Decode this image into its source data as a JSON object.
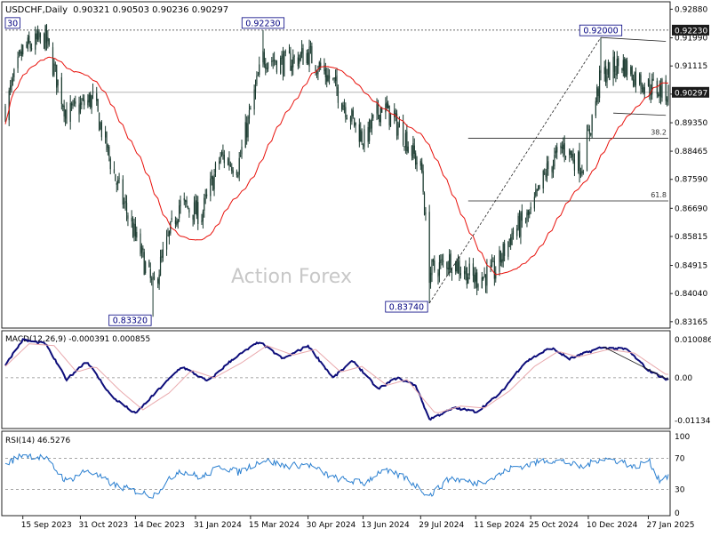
{
  "chart_data": [
    {
      "type": "candlestick",
      "title": "USDCHF,Daily",
      "ohlc_header": "0.90321 0.90503 0.90236 0.90297",
      "watermark": "Action Forex",
      "ylim": [
        0.8305,
        0.93
      ],
      "y_ticks": [
        "0.92880",
        "0.91990",
        "0.91115",
        "0.90240",
        "0.89350",
        "0.88465",
        "0.87590",
        "0.86690",
        "0.85815",
        "0.84915",
        "0.84040",
        "0.83165"
      ],
      "y_tick_values": [
        0.9288,
        0.9199,
        0.91115,
        0.9024,
        0.8935,
        0.88465,
        0.8759,
        0.8669,
        0.85815,
        0.84915,
        0.8404,
        0.83165
      ],
      "x_ticks": [
        "15 Sep 2023",
        "31 Oct 2023",
        "14 Dec 2023",
        "31 Jan 2024",
        "15 Mar 2024",
        "30 Apr 2024",
        "13 Jun 2024",
        "29 Jul 2024",
        "11 Sep 2024",
        "25 Oct 2024",
        "10 Dec 2024",
        "27 Jan 2025"
      ],
      "current_price": "0.90297",
      "current_price_value": 0.90297,
      "resistance_level": "0.92230",
      "resistance_value": 0.9223,
      "annotations": [
        {
          "label": "0.92230",
          "value": 0.9223,
          "date": "2024-03-25"
        },
        {
          "label": "0.92000",
          "value": 0.92,
          "date": "2024-12-20"
        },
        {
          "label": "0.83320",
          "value": 0.8332,
          "date": "2023-12-28"
        },
        {
          "label": "0.83740",
          "value": 0.8374,
          "date": "2024-08-05"
        },
        {
          "label": "30",
          "value": 0.9223,
          "date": "2023-09-15"
        }
      ],
      "fib_levels": [
        {
          "label": "38.2",
          "value": 0.8887
        },
        {
          "label": "61.8",
          "value": 0.8692
        }
      ],
      "moving_average": {
        "color": "#e8120c"
      },
      "trendlines": [
        {
          "from": {
            "date": "2024-08-05",
            "value": 0.8374
          },
          "to": {
            "date": "2024-12-20",
            "value": 0.92
          }
        },
        {
          "from": {
            "date": "2024-12-20",
            "value": 0.92
          },
          "to": {
            "date": "2025-02-10",
            "value": 0.9188
          }
        },
        {
          "from": {
            "date": "2024-12-30",
            "value": 0.8965
          },
          "to": {
            "date": "2025-02-10",
            "value": 0.8958
          }
        }
      ],
      "series_anchors": [
        {
          "date": "2023-09-01",
          "value": 0.898
        },
        {
          "date": "2023-09-15",
          "value": 0.916
        },
        {
          "date": "2023-10-03",
          "value": 0.92
        },
        {
          "date": "2023-10-20",
          "value": 0.896
        },
        {
          "date": "2023-11-10",
          "value": 0.901
        },
        {
          "date": "2023-11-28",
          "value": 0.876
        },
        {
          "date": "2023-12-28",
          "value": 0.842
        },
        {
          "date": "2024-01-18",
          "value": 0.868
        },
        {
          "date": "2024-02-05",
          "value": 0.865
        },
        {
          "date": "2024-02-20",
          "value": 0.883
        },
        {
          "date": "2024-03-05",
          "value": 0.88
        },
        {
          "date": "2024-03-25",
          "value": 0.914
        },
        {
          "date": "2024-04-12",
          "value": 0.912
        },
        {
          "date": "2024-04-30",
          "value": 0.915
        },
        {
          "date": "2024-05-20",
          "value": 0.906
        },
        {
          "date": "2024-06-05",
          "value": 0.894
        },
        {
          "date": "2024-06-14",
          "value": 0.888
        },
        {
          "date": "2024-06-28",
          "value": 0.899
        },
        {
          "date": "2024-07-17",
          "value": 0.889
        },
        {
          "date": "2024-07-30",
          "value": 0.878
        },
        {
          "date": "2024-08-05",
          "value": 0.847
        },
        {
          "date": "2024-08-22",
          "value": 0.851
        },
        {
          "date": "2024-09-10",
          "value": 0.845
        },
        {
          "date": "2024-09-26",
          "value": 0.847
        },
        {
          "date": "2024-10-10",
          "value": 0.859
        },
        {
          "date": "2024-10-25",
          "value": 0.865
        },
        {
          "date": "2024-11-06",
          "value": 0.878
        },
        {
          "date": "2024-11-20",
          "value": 0.886
        },
        {
          "date": "2024-12-05",
          "value": 0.88
        },
        {
          "date": "2024-12-20",
          "value": 0.908
        },
        {
          "date": "2025-01-06",
          "value": 0.912
        },
        {
          "date": "2025-01-16",
          "value": 0.908
        },
        {
          "date": "2025-01-27",
          "value": 0.905
        },
        {
          "date": "2025-02-10",
          "value": 0.903
        }
      ]
    },
    {
      "type": "line",
      "title": "MACD(12,26,9) -0.000391 0.000855",
      "ylim": [
        -0.0125,
        0.0115
      ],
      "y_ticks": [
        "0.010086",
        "0.00",
        "-0.011342"
      ],
      "y_tick_values": [
        0.010086,
        0.0,
        -0.011342
      ],
      "series": [
        {
          "role": "main",
          "color": "#0d0d7a",
          "anchors": [
            {
              "date": "2023-09-01",
              "value": 0.0035
            },
            {
              "date": "2023-09-15",
              "value": 0.01
            },
            {
              "date": "2023-10-03",
              "value": 0.009
            },
            {
              "date": "2023-10-20",
              "value": -0.0005
            },
            {
              "date": "2023-11-05",
              "value": 0.0045
            },
            {
              "date": "2023-11-25",
              "value": -0.005
            },
            {
              "date": "2023-12-14",
              "value": -0.0095
            },
            {
              "date": "2024-01-02",
              "value": -0.003
            },
            {
              "date": "2024-01-20",
              "value": 0.003
            },
            {
              "date": "2024-02-10",
              "value": -0.001
            },
            {
              "date": "2024-03-01",
              "value": 0.005
            },
            {
              "date": "2024-03-22",
              "value": 0.0095
            },
            {
              "date": "2024-04-10",
              "value": 0.005
            },
            {
              "date": "2024-04-30",
              "value": 0.0085
            },
            {
              "date": "2024-05-20",
              "value": 0.0
            },
            {
              "date": "2024-06-05",
              "value": 0.0045
            },
            {
              "date": "2024-06-25",
              "value": -0.003
            },
            {
              "date": "2024-07-10",
              "value": 0.0
            },
            {
              "date": "2024-07-25",
              "value": -0.002
            },
            {
              "date": "2024-08-05",
              "value": -0.011
            },
            {
              "date": "2024-08-25",
              "value": -0.008
            },
            {
              "date": "2024-09-12",
              "value": -0.009
            },
            {
              "date": "2024-10-01",
              "value": -0.004
            },
            {
              "date": "2024-10-20",
              "value": 0.004
            },
            {
              "date": "2024-11-10",
              "value": 0.008
            },
            {
              "date": "2024-11-25",
              "value": 0.005
            },
            {
              "date": "2024-12-20",
              "value": 0.008
            },
            {
              "date": "2025-01-10",
              "value": 0.0075
            },
            {
              "date": "2025-01-27",
              "value": 0.002
            },
            {
              "date": "2025-02-10",
              "value": -0.0004
            }
          ]
        },
        {
          "role": "signal",
          "color": "#e9a9ad",
          "anchors": [
            {
              "date": "2023-09-01",
              "value": 0.003
            },
            {
              "date": "2023-09-20",
              "value": 0.009
            },
            {
              "date": "2023-10-10",
              "value": 0.0085
            },
            {
              "date": "2023-10-28",
              "value": 0.0015
            },
            {
              "date": "2023-11-12",
              "value": 0.003
            },
            {
              "date": "2023-12-02",
              "value": -0.0035
            },
            {
              "date": "2023-12-20",
              "value": -0.0085
            },
            {
              "date": "2024-01-10",
              "value": -0.004
            },
            {
              "date": "2024-01-28",
              "value": 0.002
            },
            {
              "date": "2024-02-15",
              "value": 0.0
            },
            {
              "date": "2024-03-08",
              "value": 0.004
            },
            {
              "date": "2024-03-28",
              "value": 0.0085
            },
            {
              "date": "2024-04-18",
              "value": 0.006
            },
            {
              "date": "2024-05-06",
              "value": 0.0075
            },
            {
              "date": "2024-05-26",
              "value": 0.0015
            },
            {
              "date": "2024-06-12",
              "value": 0.003
            },
            {
              "date": "2024-07-02",
              "value": -0.002
            },
            {
              "date": "2024-07-18",
              "value": -0.0005
            },
            {
              "date": "2024-08-10",
              "value": -0.0095
            },
            {
              "date": "2024-08-30",
              "value": -0.0075
            },
            {
              "date": "2024-09-18",
              "value": -0.008
            },
            {
              "date": "2024-10-08",
              "value": -0.0035
            },
            {
              "date": "2024-10-28",
              "value": 0.003
            },
            {
              "date": "2024-11-16",
              "value": 0.007
            },
            {
              "date": "2024-12-02",
              "value": 0.0055
            },
            {
              "date": "2024-12-26",
              "value": 0.0075
            },
            {
              "date": "2025-01-16",
              "value": 0.0065
            },
            {
              "date": "2025-02-10",
              "value": 0.0009
            }
          ]
        }
      ],
      "trendline": {
        "from": {
          "date": "2024-12-22",
          "value": 0.0082
        },
        "to": {
          "date": "2025-02-12",
          "value": -0.0005
        }
      }
    },
    {
      "type": "line",
      "title": "RSI(14) 46.5276",
      "ylim": [
        0,
        100
      ],
      "y_ticks": [
        "100",
        "70",
        "30",
        "0"
      ],
      "y_tick_values": [
        100,
        70,
        30,
        0
      ],
      "series": [
        {
          "role": "rsi",
          "color": "#2a7fd0",
          "anchors": [
            {
              "date": "2023-09-01",
              "value": 62
            },
            {
              "date": "2023-09-15",
              "value": 75
            },
            {
              "date": "2023-10-03",
              "value": 70
            },
            {
              "date": "2023-10-20",
              "value": 40
            },
            {
              "date": "2023-11-05",
              "value": 55
            },
            {
              "date": "2023-11-28",
              "value": 35
            },
            {
              "date": "2023-12-28",
              "value": 22
            },
            {
              "date": "2024-01-18",
              "value": 55
            },
            {
              "date": "2024-02-05",
              "value": 45
            },
            {
              "date": "2024-02-20",
              "value": 60
            },
            {
              "date": "2024-03-05",
              "value": 52
            },
            {
              "date": "2024-03-25",
              "value": 68
            },
            {
              "date": "2024-04-12",
              "value": 60
            },
            {
              "date": "2024-04-30",
              "value": 62
            },
            {
              "date": "2024-05-20",
              "value": 45
            },
            {
              "date": "2024-06-14",
              "value": 38
            },
            {
              "date": "2024-06-28",
              "value": 55
            },
            {
              "date": "2024-07-17",
              "value": 45
            },
            {
              "date": "2024-08-05",
              "value": 22
            },
            {
              "date": "2024-08-22",
              "value": 45
            },
            {
              "date": "2024-09-10",
              "value": 38
            },
            {
              "date": "2024-09-26",
              "value": 45
            },
            {
              "date": "2024-10-10",
              "value": 58
            },
            {
              "date": "2024-10-25",
              "value": 62
            },
            {
              "date": "2024-11-06",
              "value": 68
            },
            {
              "date": "2024-11-20",
              "value": 66
            },
            {
              "date": "2024-12-05",
              "value": 58
            },
            {
              "date": "2024-12-20",
              "value": 70
            },
            {
              "date": "2025-01-06",
              "value": 66
            },
            {
              "date": "2025-01-16",
              "value": 58
            },
            {
              "date": "2025-01-27",
              "value": 68
            },
            {
              "date": "2025-02-05",
              "value": 42
            },
            {
              "date": "2025-02-10",
              "value": 47
            }
          ]
        }
      ]
    }
  ],
  "colors": {
    "bg": "#ffffff",
    "candle": "#1a3a2f",
    "ma": "#e8120c",
    "macd": "#0d0d7a",
    "signal": "#e9a9ad",
    "rsi": "#2a7fd0",
    "grid": "#555555",
    "label_text": "#000080",
    "price_box_bg": "#1b1b1b"
  }
}
